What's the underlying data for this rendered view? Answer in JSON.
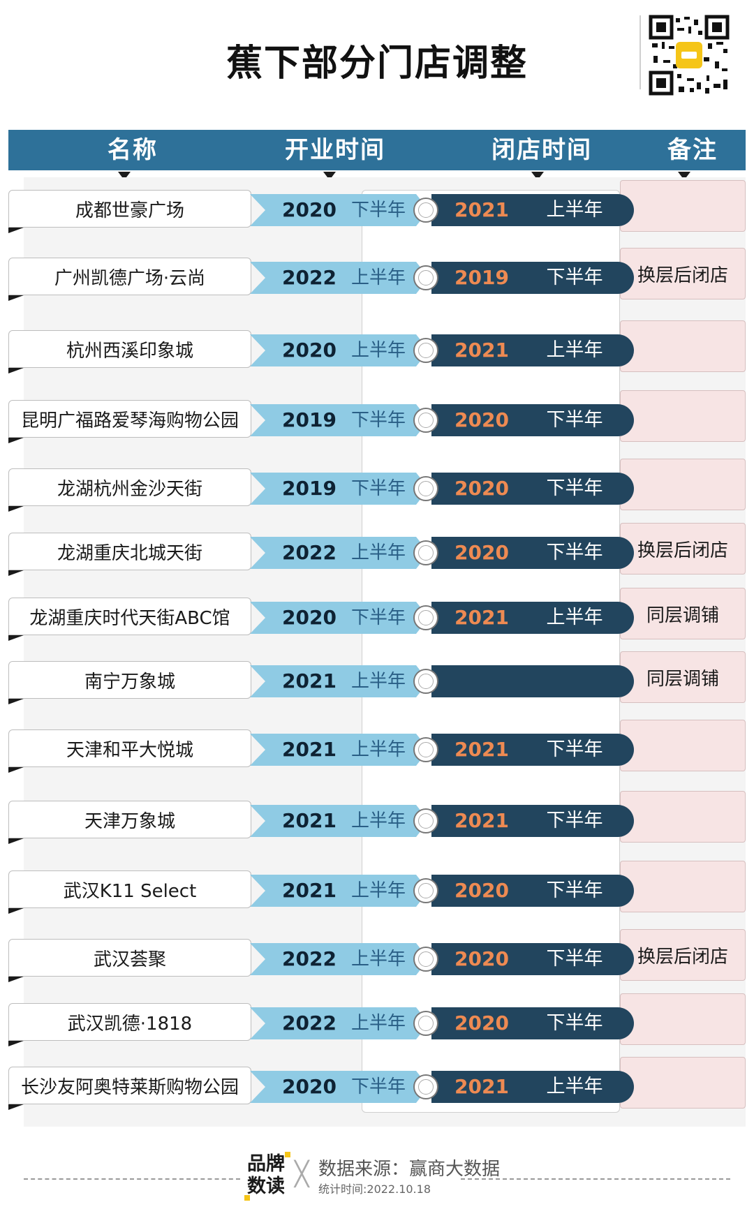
{
  "title": "蕉下部分门店调整",
  "headers": {
    "name": "名称",
    "open": "开业时间",
    "close": "闭店时间",
    "note": "备注"
  },
  "colors": {
    "header_bg": "#2e7199",
    "open_pill": "#8fcbe4",
    "close_pill": "#22455e",
    "close_year": "#ee8a52",
    "note_bg": "#f7e4e4"
  },
  "rows": [
    {
      "name": "成都世豪广场",
      "open_year": "2020",
      "open_half": "下半年",
      "close_year": "2021",
      "close_half": "上半年",
      "note": ""
    },
    {
      "name": "广州凯德广场·云尚",
      "open_year": "2022",
      "open_half": "上半年",
      "close_year": "2019",
      "close_half": "下半年",
      "note": "换层后闭店"
    },
    {
      "name": "杭州西溪印象城",
      "open_year": "2020",
      "open_half": "上半年",
      "close_year": "2021",
      "close_half": "上半年",
      "note": ""
    },
    {
      "name": "昆明广福路爱琴海购物公园",
      "open_year": "2019",
      "open_half": "下半年",
      "close_year": "2020",
      "close_half": "下半年",
      "note": ""
    },
    {
      "name": "龙湖杭州金沙天街",
      "open_year": "2019",
      "open_half": "下半年",
      "close_year": "2020",
      "close_half": "下半年",
      "note": ""
    },
    {
      "name": "龙湖重庆北城天街",
      "open_year": "2022",
      "open_half": "上半年",
      "close_year": "2020",
      "close_half": "下半年",
      "note": "换层后闭店"
    },
    {
      "name": "龙湖重庆时代天街ABC馆",
      "open_year": "2020",
      "open_half": "下半年",
      "close_year": "2021",
      "close_half": "上半年",
      "note": "同层调铺"
    },
    {
      "name": "南宁万象城",
      "open_year": "2021",
      "open_half": "上半年",
      "close_year": "",
      "close_half": "",
      "note": "同层调铺"
    },
    {
      "name": "天津和平大悦城",
      "open_year": "2021",
      "open_half": "上半年",
      "close_year": "2021",
      "close_half": "下半年",
      "note": ""
    },
    {
      "name": "天津万象城",
      "open_year": "2021",
      "open_half": "上半年",
      "close_year": "2021",
      "close_half": "下半年",
      "note": ""
    },
    {
      "name": "武汉K11 Select",
      "open_year": "2021",
      "open_half": "上半年",
      "close_year": "2020",
      "close_half": "下半年",
      "note": ""
    },
    {
      "name": "武汉荟聚",
      "open_year": "2022",
      "open_half": "上半年",
      "close_year": "2020",
      "close_half": "下半年",
      "note": "换层后闭店"
    },
    {
      "name": "武汉凯德·1818",
      "open_year": "2022",
      "open_half": "上半年",
      "close_year": "2020",
      "close_half": "下半年",
      "note": ""
    },
    {
      "name": "长沙友阿奥特莱斯购物公园",
      "open_year": "2020",
      "open_half": "下半年",
      "close_year": "2021",
      "close_half": "上半年",
      "note": ""
    }
  ],
  "footer": {
    "brand": "品牌数读",
    "source": "数据来源：赢商大数据",
    "stat_time": "统计时间:2022.10.18"
  }
}
